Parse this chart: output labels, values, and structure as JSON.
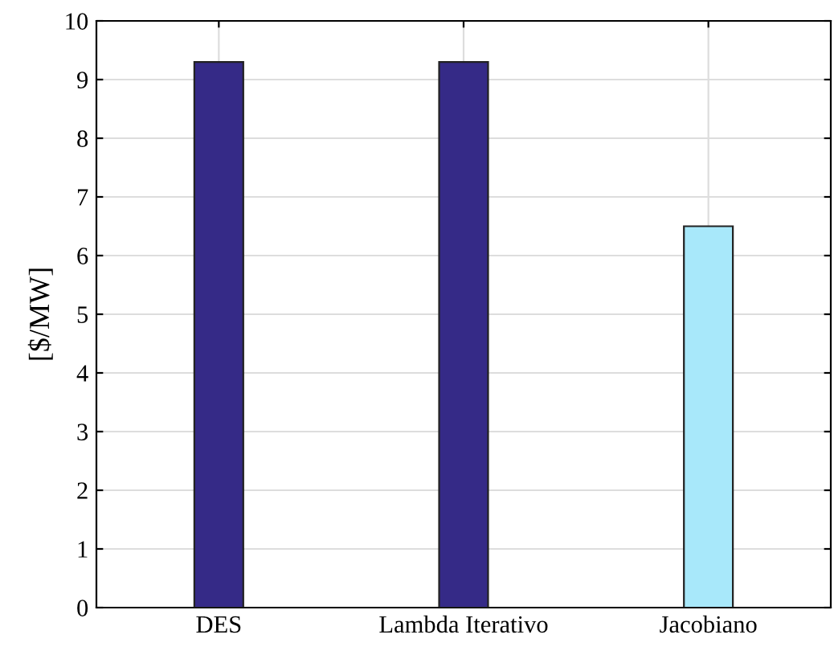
{
  "chart_data": {
    "type": "bar",
    "ylabel": "[$/MW]",
    "categories": [
      "DES",
      "Lambda Iterativo",
      "Jacobiano"
    ],
    "values": [
      9.3,
      9.3,
      6.5
    ],
    "colors": [
      "#352a87",
      "#352a87",
      "#a8e8fa"
    ],
    "ylim": [
      0,
      10
    ],
    "yticks": [
      0,
      1,
      2,
      3,
      4,
      5,
      6,
      7,
      8,
      9,
      10
    ],
    "grid": true
  }
}
